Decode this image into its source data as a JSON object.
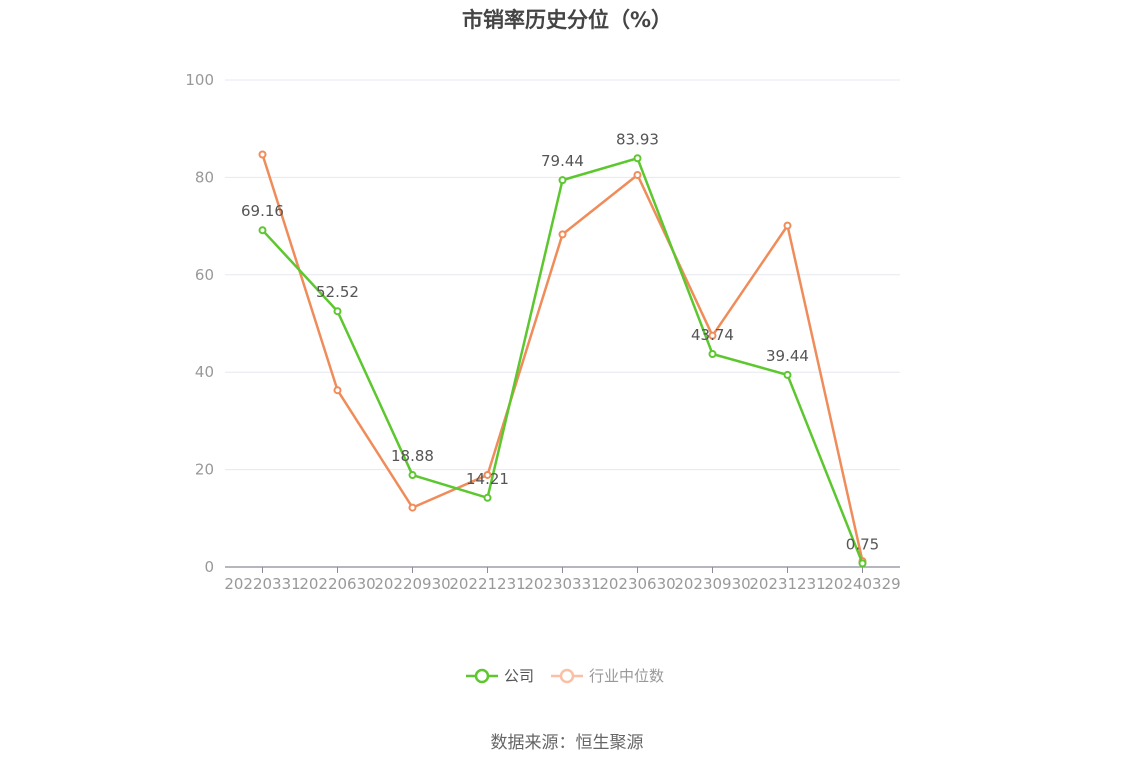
{
  "chart_data": {
    "type": "line",
    "title": "市销率历史分位（%）",
    "categories": [
      "20220331",
      "20220630",
      "20220930",
      "20221231",
      "20230331",
      "20230630",
      "20230930",
      "20231231",
      "20240329"
    ],
    "ylim": [
      0,
      100
    ],
    "yticks": [
      0,
      20,
      40,
      60,
      80,
      100
    ],
    "grid": true,
    "legend_position": "bottom",
    "series": [
      {
        "name": "公司",
        "color": "#5cc72e",
        "values": [
          69.16,
          52.52,
          18.88,
          14.21,
          79.44,
          83.93,
          43.74,
          39.44,
          0.75
        ],
        "labels": [
          "69.16",
          "52.52",
          "18.88",
          "14.21",
          "79.44",
          "83.93",
          "43.74",
          "39.44",
          "0.75"
        ]
      },
      {
        "name": "行业中位数",
        "color": "#f08c5a",
        "values": [
          84.7,
          36.3,
          12.2,
          18.9,
          68.3,
          80.5,
          47.5,
          70.1,
          1.2
        ]
      }
    ],
    "legend_colors": [
      "#5cc72e",
      "#fbbfa6"
    ],
    "legend_text_colors": [
      "#555555",
      "#999999"
    ]
  },
  "source": "数据来源：恒生聚源"
}
